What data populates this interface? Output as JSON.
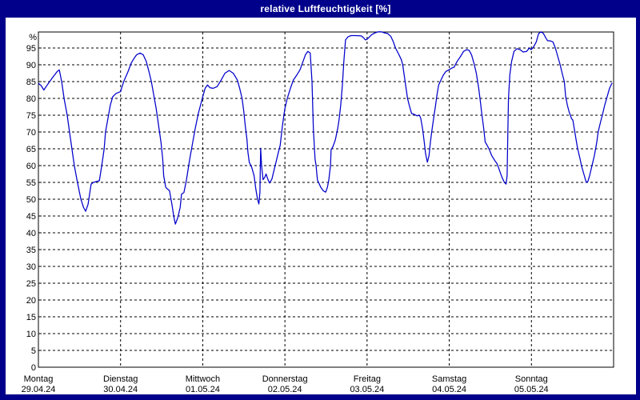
{
  "window": {
    "title": "relative Luftfeuchtigkeit [%]"
  },
  "colors": {
    "frame": "#00008B",
    "title_text": "#FFFFFF",
    "background": "#FFFFFF",
    "plot_border": "#000000",
    "grid": "#000000",
    "line": "#0000CC",
    "text": "#000000"
  },
  "y_axis": {
    "unit_label": "%",
    "tick_labels": [
      "95",
      "90",
      "85",
      "80",
      "75",
      "70",
      "65",
      "60",
      "55",
      "50",
      "45",
      "40",
      "35",
      "30",
      "25",
      "20",
      "15",
      "10",
      "5",
      "0"
    ]
  },
  "chart_data": {
    "type": "line",
    "title": "relative Luftfeuchtigkeit [%]",
    "ylabel": "%",
    "ylim": [
      0,
      100
    ],
    "y_tick_step": 5,
    "y_ticks": [
      0,
      5,
      10,
      15,
      20,
      25,
      30,
      35,
      40,
      45,
      50,
      55,
      60,
      65,
      70,
      75,
      80,
      85,
      90,
      95
    ],
    "x_unit": "hours from Monday 00:00",
    "xlim": [
      0,
      168
    ],
    "grid": "dashed",
    "legend": "none",
    "days": [
      {
        "name": "Montag",
        "date": "29.04.24"
      },
      {
        "name": "Dienstag",
        "date": "30.04.24"
      },
      {
        "name": "Mittwoch",
        "date": "01.05.24"
      },
      {
        "name": "Donnerstag",
        "date": "02.05.24"
      },
      {
        "name": "Freitag",
        "date": "03.05.24"
      },
      {
        "name": "Samstag",
        "date": "04.05.24"
      },
      {
        "name": "Sonntag",
        "date": "05.05.24"
      }
    ],
    "series": [
      {
        "name": "relative Luftfeuchtigkeit",
        "color": "#0000CC",
        "points": [
          [
            0,
            84.5
          ],
          [
            0.8,
            83.8
          ],
          [
            1.6,
            82.5
          ],
          [
            2.6,
            84
          ],
          [
            4,
            86
          ],
          [
            5.5,
            88
          ],
          [
            6.1,
            88.5
          ],
          [
            6.8,
            85
          ],
          [
            7.5,
            80
          ],
          [
            8.4,
            75
          ],
          [
            9.1,
            70
          ],
          [
            9.8,
            65
          ],
          [
            10.5,
            60
          ],
          [
            11.4,
            55
          ],
          [
            12.4,
            50
          ],
          [
            13.2,
            47.5
          ],
          [
            13.8,
            46.4
          ],
          [
            14.5,
            48.5
          ],
          [
            15.4,
            54.5
          ],
          [
            16.1,
            55
          ],
          [
            17.8,
            55.5
          ],
          [
            18.5,
            60
          ],
          [
            19.2,
            65
          ],
          [
            19.6,
            70
          ],
          [
            20.3,
            74
          ],
          [
            21,
            78
          ],
          [
            21.7,
            80.5
          ],
          [
            22.7,
            81.5
          ],
          [
            24,
            82
          ],
          [
            24.9,
            85
          ],
          [
            26.2,
            88
          ],
          [
            27.1,
            90.5
          ],
          [
            28,
            92
          ],
          [
            28.7,
            93
          ],
          [
            29.7,
            93.5
          ],
          [
            30.6,
            93
          ],
          [
            31.5,
            91
          ],
          [
            32.3,
            88
          ],
          [
            33,
            85
          ],
          [
            33.7,
            81
          ],
          [
            34.4,
            77
          ],
          [
            35.1,
            72
          ],
          [
            35.8,
            67
          ],
          [
            36.3,
            62
          ],
          [
            36.6,
            57
          ],
          [
            37.2,
            53.5
          ],
          [
            38.3,
            52.5
          ],
          [
            39,
            48.5
          ],
          [
            39.5,
            45
          ],
          [
            40,
            42.6
          ],
          [
            40.7,
            44.5
          ],
          [
            41.4,
            47.5
          ],
          [
            41.8,
            51.5
          ],
          [
            42.5,
            52
          ],
          [
            43.2,
            55.5
          ],
          [
            44.2,
            62
          ],
          [
            44.9,
            66
          ],
          [
            45.8,
            71
          ],
          [
            46.7,
            75.5
          ],
          [
            48,
            80.5
          ],
          [
            48.7,
            83
          ],
          [
            49.4,
            84
          ],
          [
            50.1,
            83.2
          ],
          [
            51,
            83
          ],
          [
            52.2,
            83.5
          ],
          [
            53.4,
            85.5
          ],
          [
            54.5,
            87.5
          ],
          [
            55.7,
            88.3
          ],
          [
            56.9,
            87.5
          ],
          [
            58.1,
            85.5
          ],
          [
            58.8,
            83
          ],
          [
            59.5,
            80
          ],
          [
            60,
            76
          ],
          [
            60.4,
            72
          ],
          [
            60.9,
            68
          ],
          [
            61.2,
            64
          ],
          [
            61.6,
            61
          ],
          [
            62.3,
            59.5
          ],
          [
            63,
            57
          ],
          [
            63.5,
            53
          ],
          [
            64,
            50
          ],
          [
            64.4,
            48.6
          ],
          [
            64.7,
            52
          ],
          [
            64.9,
            65.2
          ],
          [
            65.2,
            60
          ],
          [
            65.6,
            55.8
          ],
          [
            66.1,
            56.5
          ],
          [
            66.5,
            57.5
          ],
          [
            67,
            56
          ],
          [
            67.5,
            54.8
          ],
          [
            68.2,
            56
          ],
          [
            68.9,
            59
          ],
          [
            69.4,
            61
          ],
          [
            70.1,
            64
          ],
          [
            70.6,
            66
          ],
          [
            71.3,
            72
          ],
          [
            72,
            77
          ],
          [
            72.7,
            80
          ],
          [
            73.6,
            83
          ],
          [
            74.5,
            85.5
          ],
          [
            75.5,
            87
          ],
          [
            76.4,
            88.5
          ],
          [
            77.3,
            91
          ],
          [
            78,
            93
          ],
          [
            78.7,
            94
          ],
          [
            79.4,
            93.5
          ],
          [
            79.9,
            85
          ],
          [
            80.3,
            71
          ],
          [
            80.8,
            62
          ],
          [
            81.1,
            60
          ],
          [
            81.5,
            55.7
          ],
          [
            82.5,
            53.5
          ],
          [
            83.2,
            52.5
          ],
          [
            83.9,
            52.1
          ],
          [
            84.4,
            53.5
          ],
          [
            84.8,
            55.5
          ],
          [
            85.3,
            60
          ],
          [
            85.5,
            64.8
          ],
          [
            86,
            65.6
          ],
          [
            86.7,
            67.6
          ],
          [
            87.4,
            71
          ],
          [
            87.8,
            73.6
          ],
          [
            88.3,
            78
          ],
          [
            88.8,
            84
          ],
          [
            89.2,
            91
          ],
          [
            89.7,
            97.4
          ],
          [
            90.4,
            98.3
          ],
          [
            91.3,
            98.7
          ],
          [
            92.7,
            98.7
          ],
          [
            94.3,
            98.6
          ],
          [
            95,
            98
          ],
          [
            95.5,
            97.4
          ],
          [
            96,
            97.6
          ],
          [
            96.7,
            98.3
          ],
          [
            97.4,
            99
          ],
          [
            98.3,
            99.5
          ],
          [
            99.2,
            99.8
          ],
          [
            100.2,
            99.8
          ],
          [
            101.1,
            99.5
          ],
          [
            102,
            99.3
          ],
          [
            102.9,
            98.5
          ],
          [
            103.6,
            97
          ],
          [
            104.3,
            95
          ],
          [
            105.3,
            93
          ],
          [
            106,
            91.5
          ],
          [
            106.4,
            90
          ],
          [
            107.1,
            85
          ],
          [
            107.8,
            80
          ],
          [
            108.3,
            78
          ],
          [
            109,
            75.5
          ],
          [
            109.9,
            75.2
          ],
          [
            110.6,
            74.8
          ],
          [
            111.3,
            75
          ],
          [
            111.7,
            74
          ],
          [
            112.2,
            71
          ],
          [
            112.7,
            67
          ],
          [
            113.1,
            63.5
          ],
          [
            113.6,
            61
          ],
          [
            114.1,
            63
          ],
          [
            114.5,
            67
          ],
          [
            115,
            71
          ],
          [
            115.5,
            74.5
          ],
          [
            116,
            78
          ],
          [
            116.4,
            81
          ],
          [
            116.9,
            84
          ],
          [
            117.6,
            85.5
          ],
          [
            118.3,
            87
          ],
          [
            119,
            88
          ],
          [
            120,
            88.6
          ],
          [
            120.7,
            89
          ],
          [
            121.4,
            89.3
          ],
          [
            122.3,
            91
          ],
          [
            123.3,
            92.5
          ],
          [
            124.2,
            94
          ],
          [
            125.1,
            94.5
          ],
          [
            125.8,
            94.3
          ],
          [
            126.5,
            93
          ],
          [
            127.2,
            90.5
          ],
          [
            127.9,
            87.5
          ],
          [
            128.6,
            83
          ],
          [
            129.1,
            79
          ],
          [
            129.5,
            75.5
          ],
          [
            130,
            71.5
          ],
          [
            130.5,
            67
          ],
          [
            131,
            66.2
          ],
          [
            131.7,
            64.8
          ],
          [
            132.4,
            63
          ],
          [
            133.3,
            61.5
          ],
          [
            134,
            60.5
          ],
          [
            134.7,
            58.5
          ],
          [
            135.4,
            56.5
          ],
          [
            136.1,
            55
          ],
          [
            136.6,
            54.5
          ],
          [
            136.9,
            57
          ],
          [
            137.1,
            70
          ],
          [
            137.3,
            80
          ],
          [
            137.7,
            87
          ],
          [
            138.2,
            91
          ],
          [
            138.9,
            94
          ],
          [
            139.8,
            94.8
          ],
          [
            140.7,
            94.5
          ],
          [
            141.6,
            93.8
          ],
          [
            142.6,
            94
          ],
          [
            143.4,
            95
          ],
          [
            143.9,
            94.5
          ],
          [
            144.6,
            95.3
          ],
          [
            145.4,
            96.8
          ],
          [
            146.1,
            99.3
          ],
          [
            146.8,
            99.8
          ],
          [
            147.5,
            99.3
          ],
          [
            148.2,
            98
          ],
          [
            148.7,
            97.2
          ],
          [
            149.6,
            97.1
          ],
          [
            150.3,
            96.8
          ],
          [
            151,
            95
          ],
          [
            151.7,
            92.5
          ],
          [
            152.4,
            90
          ],
          [
            153.1,
            87
          ],
          [
            153.6,
            85
          ],
          [
            154,
            80.5
          ],
          [
            154.5,
            78
          ],
          [
            155,
            76
          ],
          [
            155.7,
            74
          ],
          [
            156.1,
            73.5
          ],
          [
            156.6,
            70.5
          ],
          [
            157,
            68
          ],
          [
            157.5,
            65
          ],
          [
            158.2,
            62
          ],
          [
            158.6,
            60
          ],
          [
            159.3,
            57.5
          ],
          [
            160,
            55
          ],
          [
            160.5,
            55.3
          ],
          [
            161,
            57
          ],
          [
            161.7,
            60
          ],
          [
            162.4,
            63
          ],
          [
            163.1,
            67
          ],
          [
            163.5,
            70
          ],
          [
            164.2,
            73
          ],
          [
            164.7,
            75
          ],
          [
            165.4,
            78
          ],
          [
            166.1,
            80.5
          ],
          [
            166.8,
            83
          ],
          [
            167.5,
            84.5
          ]
        ]
      }
    ]
  }
}
